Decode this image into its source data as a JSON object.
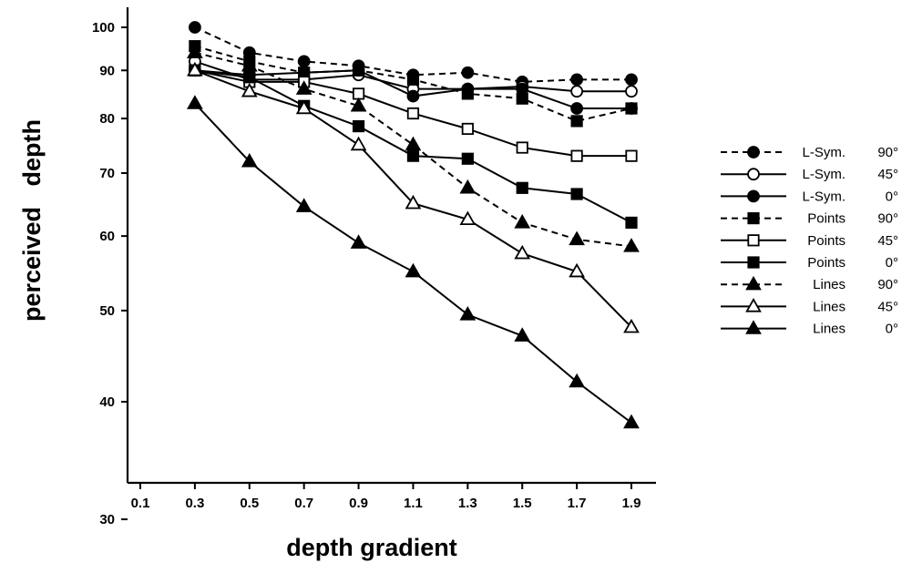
{
  "chart_data": {
    "type": "line",
    "title": "",
    "xlabel": "depth gradient",
    "ylabel": "perceived   depth",
    "x_ticks": [
      "0.1",
      "0.3",
      "0.5",
      "0.7",
      "0.9",
      "1.1",
      "1.3",
      "1.5",
      "1.7",
      "1.9"
    ],
    "y_ticks": [
      "30",
      "40",
      "50",
      "60",
      "70",
      "80",
      "90",
      "100"
    ],
    "xlim": [
      0.0,
      2.0
    ],
    "ylim": [
      30,
      100
    ],
    "y_scale": "log",
    "grid": false,
    "legend_position": "right",
    "x": [
      0.3,
      0.5,
      0.7,
      0.9,
      1.1,
      1.3,
      1.5,
      1.7,
      1.9
    ],
    "series": [
      {
        "name": "L-Sym.",
        "angle": "90°",
        "dashed": true,
        "marker": "circle",
        "filled": true,
        "values": [
          100,
          94,
          92,
          91,
          89,
          89.5,
          87.5,
          88,
          88
        ]
      },
      {
        "name": "L-Sym.",
        "angle": "45°",
        "dashed": false,
        "marker": "circle",
        "filled": false,
        "values": [
          92,
          88,
          88,
          89,
          86,
          86,
          86.5,
          85.5,
          85.5
        ]
      },
      {
        "name": "L-Sym.",
        "angle": "0°",
        "dashed": false,
        "marker": "circle",
        "filled": true,
        "values": [
          90,
          89,
          89.5,
          90,
          84.5,
          86,
          86,
          82,
          82
        ]
      },
      {
        "name": "Points",
        "angle": "90°",
        "dashed": true,
        "marker": "square",
        "filled": true,
        "values": [
          95.5,
          92,
          89.5,
          90,
          88,
          85,
          84,
          79.5,
          82
        ]
      },
      {
        "name": "Points",
        "angle": "45°",
        "dashed": false,
        "marker": "square",
        "filled": false,
        "values": [
          90,
          87.5,
          87.5,
          85,
          81,
          78,
          74.5,
          73,
          73
        ]
      },
      {
        "name": "Points",
        "angle": "0°",
        "dashed": false,
        "marker": "square",
        "filled": true,
        "values": [
          90,
          88.5,
          82.5,
          78.5,
          73,
          72.5,
          67.5,
          66.5,
          62
        ]
      },
      {
        "name": "Lines",
        "angle": "90°",
        "dashed": true,
        "marker": "triangle",
        "filled": true,
        "values": [
          94,
          91,
          86,
          82.5,
          75,
          67.5,
          62,
          59.5,
          58.5
        ]
      },
      {
        "name": "Lines",
        "angle": "45°",
        "dashed": false,
        "marker": "triangle",
        "filled": false,
        "values": [
          90,
          85.5,
          82,
          75,
          65,
          62.5,
          57.5,
          55,
          48
        ]
      },
      {
        "name": "Lines",
        "angle": "0°",
        "dashed": false,
        "marker": "triangle",
        "filled": true,
        "values": [
          83,
          72,
          64.5,
          59,
          55,
          49.5,
          47,
          42,
          38
        ]
      }
    ]
  }
}
